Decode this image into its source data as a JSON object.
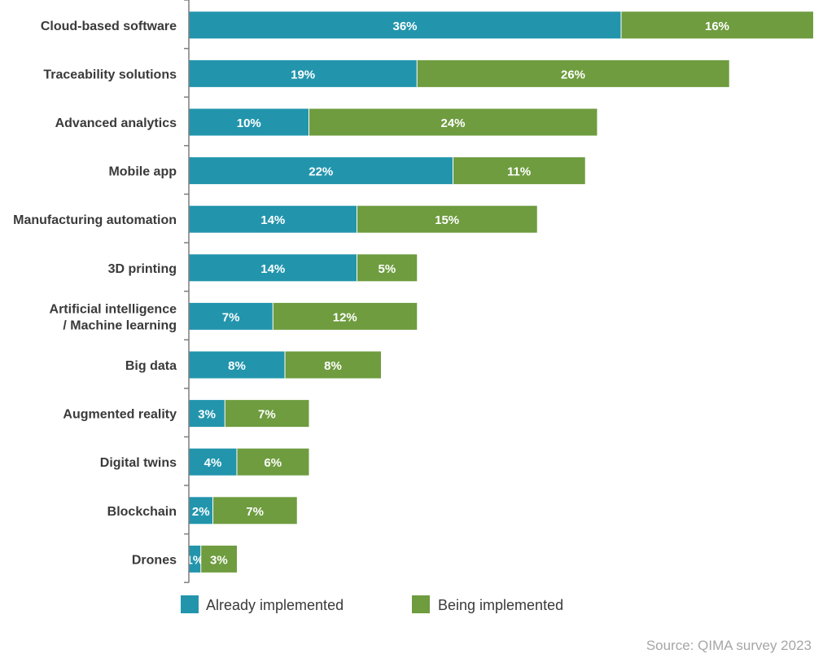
{
  "chart_data": {
    "type": "bar",
    "orientation": "horizontal",
    "stacked": true,
    "categories": [
      "Cloud-based software",
      "Traceability solutions",
      "Advanced analytics",
      "Mobile app",
      "Manufacturing automation",
      "3D printing",
      "Artificial intelligence\n/ Machine learning",
      "Big data",
      "Augmented reality",
      "Digital twins",
      "Blockchain",
      "Drones"
    ],
    "series": [
      {
        "name": "Already implemented",
        "color": "#2295ad",
        "values": [
          36,
          19,
          10,
          22,
          14,
          14,
          7,
          8,
          3,
          4,
          2,
          1
        ]
      },
      {
        "name": "Being implemented",
        "color": "#6e9c3f",
        "values": [
          16,
          26,
          24,
          11,
          15,
          5,
          12,
          8,
          7,
          6,
          7,
          3
        ]
      }
    ],
    "value_suffix": "%",
    "xlim": [
      0,
      52
    ],
    "grid": false,
    "legend_position": "bottom",
    "source": "Source: QIMA survey 2023"
  }
}
